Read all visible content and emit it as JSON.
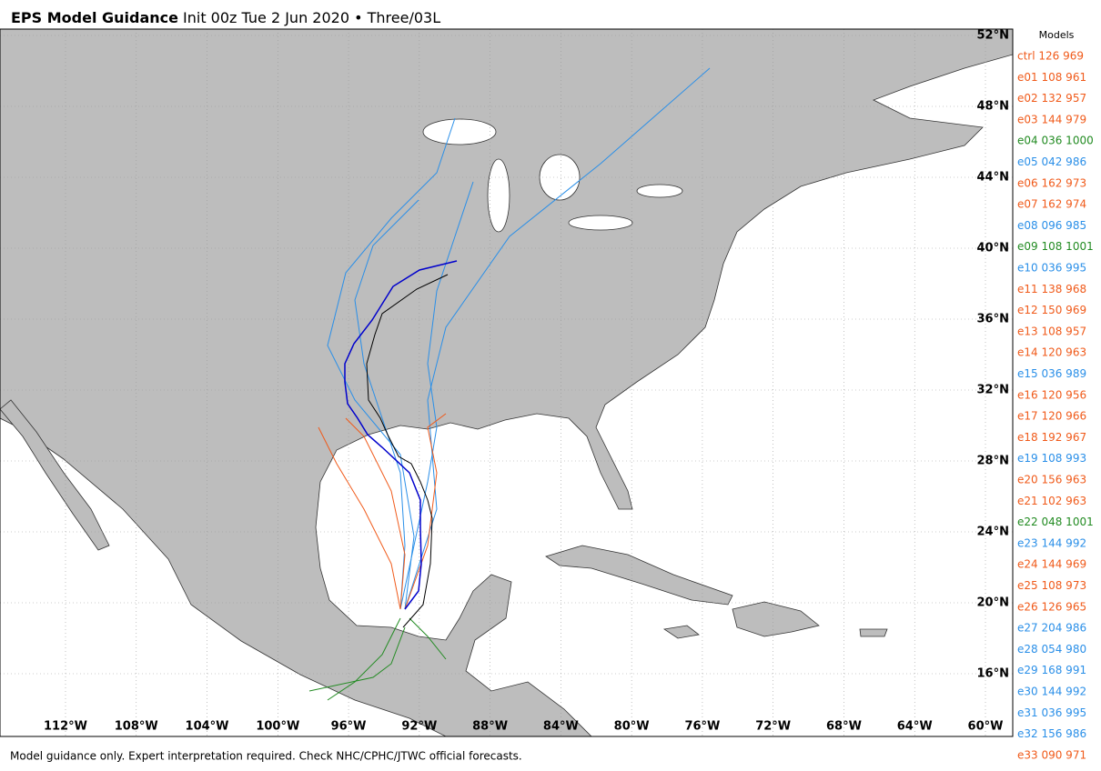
{
  "header": {
    "title_bold": "EPS Model Guidance",
    "title_rest": "Init 00z Tue 2 Jun 2020 • Three/03L"
  },
  "lat_labels": [
    "52°N",
    "48°N",
    "44°N",
    "40°N",
    "36°N",
    "32°N",
    "28°N",
    "24°N",
    "20°N",
    "16°N"
  ],
  "lon_labels": [
    "112°W",
    "108°W",
    "104°W",
    "100°W",
    "96°W",
    "92°W",
    "88°W",
    "84°W",
    "80°W",
    "76°W",
    "72°W",
    "68°W",
    "64°W",
    "60°W"
  ],
  "legend": {
    "title": "Models",
    "entries": [
      {
        "label": "ctrl 126 969",
        "color": "#f05a1a"
      },
      {
        "label": "e01 108 961",
        "color": "#f05a1a"
      },
      {
        "label": "e02 132 957",
        "color": "#f05a1a"
      },
      {
        "label": "e03 144 979",
        "color": "#f05a1a"
      },
      {
        "label": "e04 036 1000",
        "color": "#228b22"
      },
      {
        "label": "e05 042 986",
        "color": "#2a8fe8"
      },
      {
        "label": "e06 162 973",
        "color": "#f05a1a"
      },
      {
        "label": "e07 162 974",
        "color": "#f05a1a"
      },
      {
        "label": "e08 096 985",
        "color": "#2a8fe8"
      },
      {
        "label": "e09 108 1001",
        "color": "#228b22"
      },
      {
        "label": "e10 036 995",
        "color": "#2a8fe8"
      },
      {
        "label": "e11 138 968",
        "color": "#f05a1a"
      },
      {
        "label": "e12 150 969",
        "color": "#f05a1a"
      },
      {
        "label": "e13 108 957",
        "color": "#f05a1a"
      },
      {
        "label": "e14 120 963",
        "color": "#f05a1a"
      },
      {
        "label": "e15 036 989",
        "color": "#2a8fe8"
      },
      {
        "label": "e16 120 956",
        "color": "#f05a1a"
      },
      {
        "label": "e17 120 966",
        "color": "#f05a1a"
      },
      {
        "label": "e18 192 967",
        "color": "#f05a1a"
      },
      {
        "label": "e19 108 993",
        "color": "#2a8fe8"
      },
      {
        "label": "e20 156 963",
        "color": "#f05a1a"
      },
      {
        "label": "e21 102 963",
        "color": "#f05a1a"
      },
      {
        "label": "e22 048 1001",
        "color": "#228b22"
      },
      {
        "label": "e23 144 992",
        "color": "#2a8fe8"
      },
      {
        "label": "e24 144 969",
        "color": "#f05a1a"
      },
      {
        "label": "e25 108 973",
        "color": "#f05a1a"
      },
      {
        "label": "e26 126 965",
        "color": "#f05a1a"
      },
      {
        "label": "e27 204 986",
        "color": "#2a8fe8"
      },
      {
        "label": "e28 054 980",
        "color": "#2a8fe8"
      },
      {
        "label": "e29 168 991",
        "color": "#2a8fe8"
      },
      {
        "label": "e30 144 992",
        "color": "#2a8fe8"
      },
      {
        "label": "e31 036 995",
        "color": "#2a8fe8"
      },
      {
        "label": "e32 156 986",
        "color": "#2a8fe8"
      },
      {
        "label": "e33 090 971",
        "color": "#f05a1a"
      }
    ]
  },
  "footer": "Model guidance only. Expert interpretation required. Check NHC/CPHC/JTWC official forecasts."
}
